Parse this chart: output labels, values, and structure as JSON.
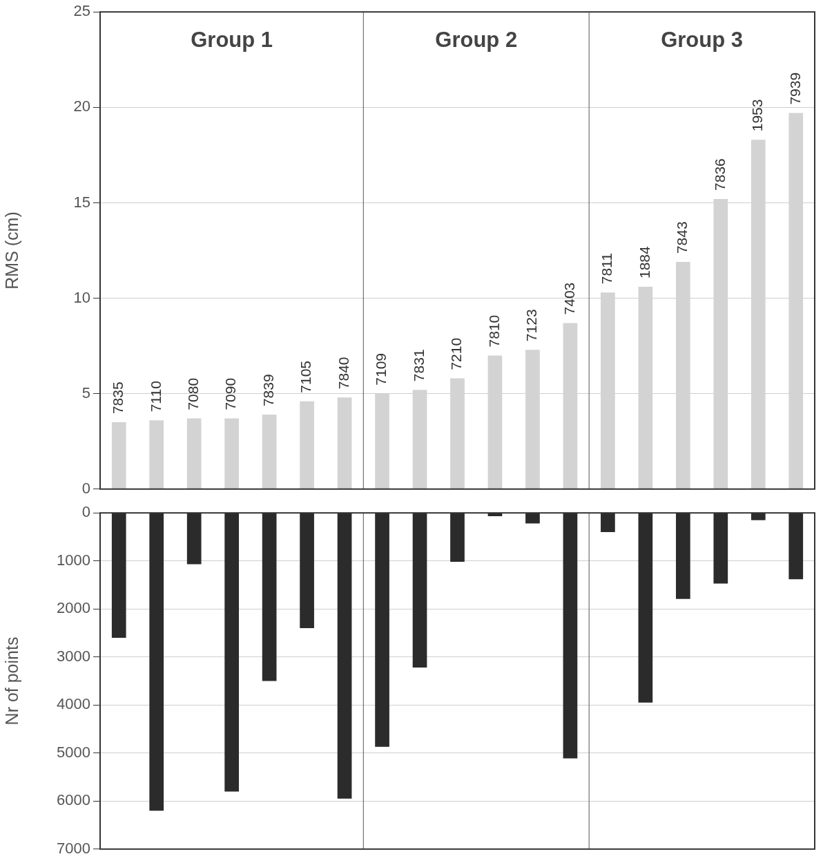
{
  "chart_data": [
    {
      "type": "bar",
      "ylabel": "RMS (cm)",
      "categories": [
        "7835",
        "7110",
        "7080",
        "7090",
        "7839",
        "7105",
        "7840",
        "7109",
        "7831",
        "7210",
        "7810",
        "7123",
        "7403",
        "7811",
        "1884",
        "7843",
        "7836",
        "1953",
        "7939"
      ],
      "values": [
        3.5,
        3.6,
        3.7,
        3.7,
        3.9,
        4.6,
        4.8,
        5.0,
        5.2,
        5.8,
        7.0,
        7.3,
        8.7,
        10.3,
        10.6,
        11.9,
        15.2,
        18.3,
        19.7
      ],
      "color": "#d3d3d3",
      "ylim": [
        0,
        25
      ],
      "yticks": [
        0,
        5,
        10,
        15,
        20,
        25
      ],
      "grid": "y",
      "annotations": [
        "Group 1",
        "Group 2",
        "Group 3"
      ]
    },
    {
      "type": "bar",
      "ylabel": "Nr of points",
      "categories": [
        "7835",
        "7110",
        "7080",
        "7090",
        "7839",
        "7105",
        "7840",
        "7109",
        "7831",
        "7210",
        "7810",
        "7123",
        "7403",
        "7811",
        "1884",
        "7843",
        "7836",
        "1953",
        "7939"
      ],
      "values": [
        2600,
        6200,
        1070,
        5800,
        3500,
        2400,
        5950,
        4870,
        3220,
        1020,
        70,
        220,
        5110,
        400,
        3950,
        1790,
        1470,
        150,
        1380
      ],
      "color": "#2b2b2b",
      "ylim": [
        7000,
        0
      ],
      "yticks": [
        0,
        1000,
        2000,
        3000,
        4000,
        5000,
        6000,
        7000
      ],
      "grid": "y",
      "tick_labels": "y"
    }
  ]
}
